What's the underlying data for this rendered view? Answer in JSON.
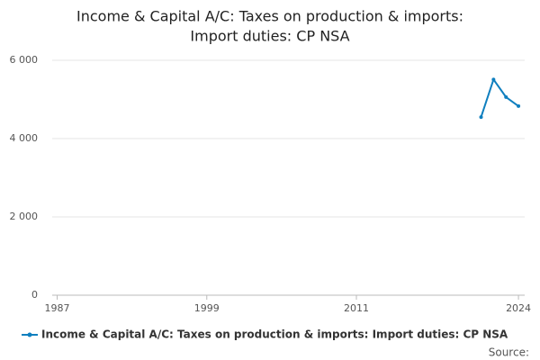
{
  "chart_data": {
    "type": "line",
    "title": [
      "Income & Capital A/C: Taxes on production & imports:",
      "Import duties: CP NSA"
    ],
    "x": [
      2021,
      2022,
      2023,
      2024
    ],
    "series": [
      {
        "name": "Income & Capital A/C: Taxes on production & imports: Import duties: CP NSA",
        "color": "#0f7fbf",
        "values": [
          4550,
          5510,
          5060,
          4830
        ]
      }
    ],
    "xlim": [
      1986.6,
      2024.5
    ],
    "xticks": [
      1987,
      1999,
      2011,
      2024
    ],
    "ylim": [
      0,
      6000
    ],
    "yticks": [
      {
        "value": 0,
        "label": "0"
      },
      {
        "value": 2000,
        "label": "2 000"
      },
      {
        "value": 4000,
        "label": "4 000"
      },
      {
        "value": 6000,
        "label": "6 000"
      }
    ],
    "grid": true,
    "legend": "bottom",
    "source": "Source:"
  }
}
